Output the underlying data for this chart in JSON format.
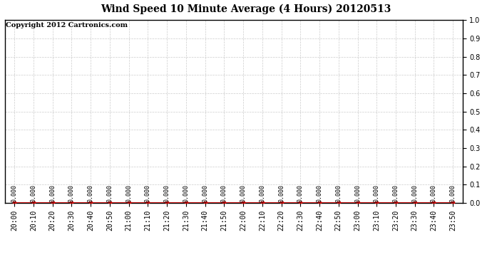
{
  "title": "Wind Speed 10 Minute Average (4 Hours) 20120513",
  "copyright_text": "Copyright 2012 Cartronics.com",
  "x_labels": [
    "20:00",
    "20:10",
    "20:20",
    "20:30",
    "20:40",
    "20:50",
    "21:00",
    "21:10",
    "21:20",
    "21:30",
    "21:40",
    "21:50",
    "22:00",
    "22:10",
    "22:20",
    "22:30",
    "22:40",
    "22:50",
    "23:00",
    "23:10",
    "23:20",
    "23:30",
    "23:40",
    "23:50"
  ],
  "y_values": [
    0.0,
    0.0,
    0.0,
    0.0,
    0.0,
    0.0,
    0.0,
    0.0,
    0.0,
    0.0,
    0.0,
    0.0,
    0.0,
    0.0,
    0.0,
    0.0,
    0.0,
    0.0,
    0.0,
    0.0,
    0.0,
    0.0,
    0.0,
    0.0
  ],
  "bar_labels": [
    "0.000",
    "0.000",
    "0.000",
    "0.000",
    "0.000",
    "0.000",
    "0.000",
    "0.000",
    "0.000",
    "0.000",
    "0.000",
    "0.000",
    "0.000",
    "0.000",
    "0.000",
    "0.000",
    "0.000",
    "0.000",
    "0.000",
    "0.000",
    "0.000",
    "0.000",
    "0.000",
    "0.000"
  ],
  "ylim": [
    0.0,
    1.0
  ],
  "yticks": [
    0.0,
    0.1,
    0.2,
    0.3,
    0.4,
    0.5,
    0.6,
    0.7,
    0.8,
    0.9,
    1.0
  ],
  "line_color": "#cc0000",
  "marker_color": "#cc0000",
  "bg_color": "#ffffff",
  "grid_color": "#cccccc",
  "plot_bg_color": "#ffffff",
  "title_fontsize": 10,
  "copyright_fontsize": 7,
  "tick_fontsize": 7,
  "bar_label_fontsize": 6
}
